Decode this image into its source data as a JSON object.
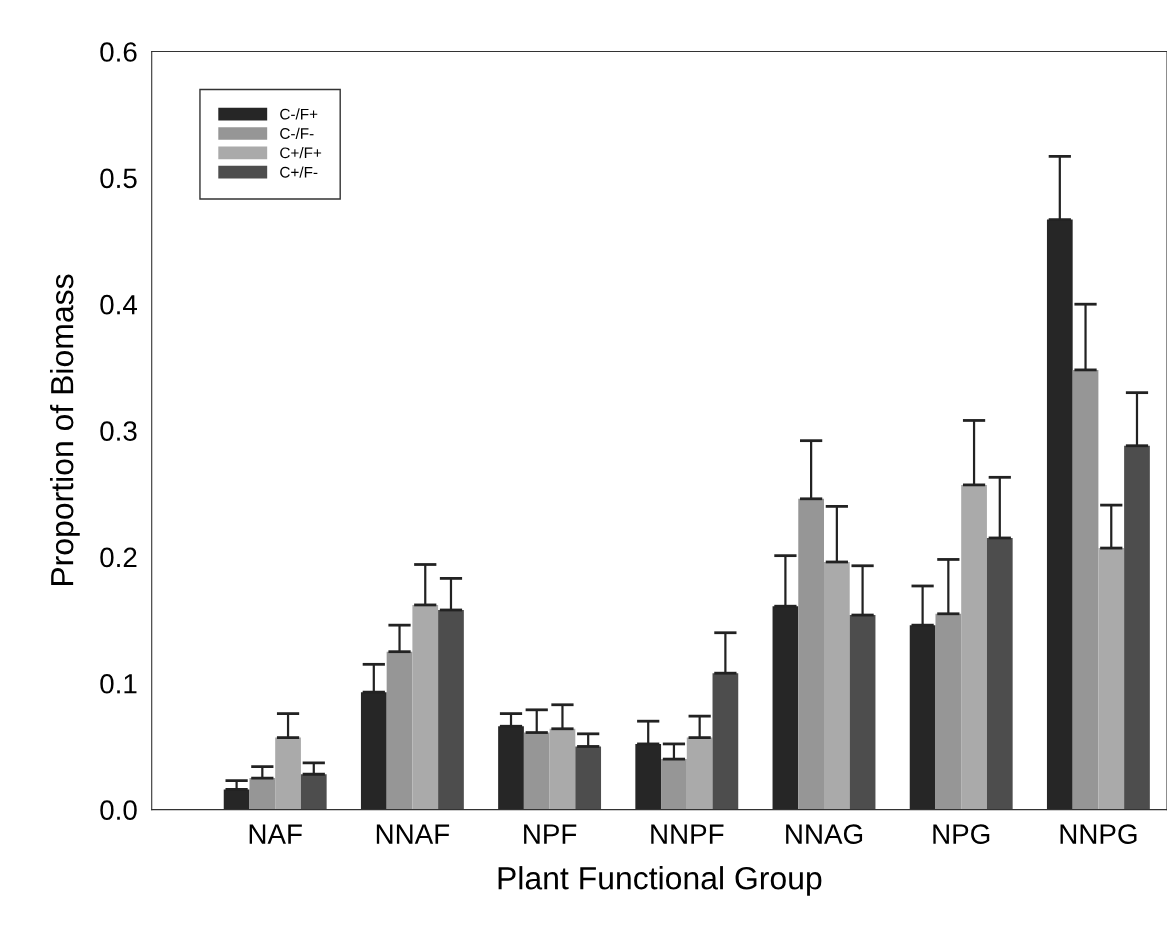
{
  "chart_data": {
    "type": "bar",
    "xlabel": "Plant Functional Group",
    "ylabel": "Proportion of Biomass",
    "categories": [
      "NAF",
      "NNAF",
      "NPF",
      "NNPF",
      "NNAG",
      "NPG",
      "NNPG"
    ],
    "series": [
      {
        "name": "C-/F+",
        "color": "#262626",
        "values": [
          0.016,
          0.093,
          0.066,
          0.052,
          0.161,
          0.146,
          0.467
        ],
        "errors": [
          [
            0.016,
            0.023
          ],
          [
            0.093,
            0.115
          ],
          [
            0.066,
            0.076
          ],
          [
            0.052,
            0.07
          ],
          [
            0.161,
            0.201
          ],
          [
            0.146,
            0.177
          ],
          [
            0.467,
            0.517
          ]
        ]
      },
      {
        "name": "C-/F-",
        "color": "#969696",
        "values": [
          0.025,
          0.125,
          0.061,
          0.04,
          0.246,
          0.155,
          0.348
        ],
        "errors": [
          [
            0.025,
            0.034
          ],
          [
            0.125,
            0.146
          ],
          [
            0.061,
            0.079
          ],
          [
            0.04,
            0.052
          ],
          [
            0.246,
            0.292
          ],
          [
            0.155,
            0.198
          ],
          [
            0.348,
            0.4
          ]
        ]
      },
      {
        "name": "C+/F+",
        "color": "#aaaaaa",
        "values": [
          0.057,
          0.162,
          0.064,
          0.057,
          0.196,
          0.257,
          0.207
        ],
        "errors": [
          [
            0.057,
            0.076
          ],
          [
            0.162,
            0.194
          ],
          [
            0.064,
            0.083
          ],
          [
            0.057,
            0.074
          ],
          [
            0.196,
            0.24
          ],
          [
            0.257,
            0.308
          ],
          [
            0.207,
            0.241
          ]
        ]
      },
      {
        "name": "C+/F-",
        "color": "#4d4d4d",
        "values": [
          0.028,
          0.158,
          0.05,
          0.108,
          0.154,
          0.215,
          0.288
        ],
        "errors": [
          [
            0.028,
            0.037
          ],
          [
            0.158,
            0.183
          ],
          [
            0.05,
            0.06
          ],
          [
            0.108,
            0.14
          ],
          [
            0.154,
            0.193
          ],
          [
            0.215,
            0.263
          ],
          [
            0.288,
            0.33
          ]
        ]
      }
    ],
    "ylim": [
      0,
      0.6
    ],
    "yticks": [
      {
        "value": 0,
        "label": "0.0"
      },
      0.1,
      0.2,
      0.3,
      0.4,
      0.5,
      0.6
    ],
    "grid": false,
    "legend": "top left"
  }
}
